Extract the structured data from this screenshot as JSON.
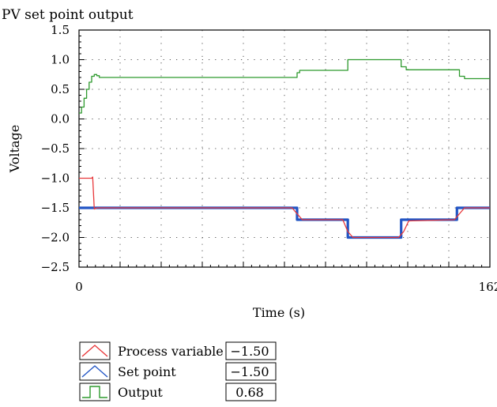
{
  "chart_data": {
    "type": "line",
    "title": "PV set point output",
    "xlabel": "Time (s)",
    "ylabel": "Voltage",
    "xlim": [
      0,
      162
    ],
    "ylim": [
      -2.5,
      1.5
    ],
    "x_ticks": [
      "0",
      "162"
    ],
    "y_ticks": [
      "1.5",
      "1.0",
      "0.5",
      "0.0",
      "−0.5",
      "−1.0",
      "−1.5",
      "−2.0",
      "−2.5"
    ],
    "grid": "dotted",
    "legend_position": "bottom-left",
    "series": [
      {
        "name": "Process variable",
        "color": "#e8373a",
        "icon": "process-variable-icon",
        "readout": "−1.50",
        "points": [
          [
            0,
            -1.0
          ],
          [
            5,
            -1.0
          ],
          [
            5.4,
            -0.98
          ],
          [
            6,
            -1.52
          ],
          [
            7,
            -1.5
          ],
          [
            84,
            -1.5
          ],
          [
            86,
            -1.6
          ],
          [
            88,
            -1.7
          ],
          [
            104,
            -1.7
          ],
          [
            106,
            -1.9
          ],
          [
            108,
            -2.0
          ],
          [
            126,
            -2.0
          ],
          [
            128,
            -1.9
          ],
          [
            130,
            -1.72
          ],
          [
            148,
            -1.7
          ],
          [
            150,
            -1.6
          ],
          [
            152,
            -1.5
          ],
          [
            162,
            -1.5
          ]
        ]
      },
      {
        "name": "Set point",
        "color": "#2255c4",
        "icon": "set-point-icon",
        "readout": "−1.50",
        "points": [
          [
            0,
            -1.5
          ],
          [
            86,
            -1.5
          ],
          [
            86,
            -1.7
          ],
          [
            106,
            -1.7
          ],
          [
            106,
            -2.0
          ],
          [
            127,
            -2.0
          ],
          [
            127,
            -1.7
          ],
          [
            149,
            -1.7
          ],
          [
            149,
            -1.5
          ],
          [
            162,
            -1.5
          ]
        ]
      },
      {
        "name": "Output",
        "color": "#2e9a2e",
        "icon": "output-icon",
        "readout": "0.68",
        "points": [
          [
            0,
            0.1
          ],
          [
            1,
            0.1
          ],
          [
            1,
            0.2
          ],
          [
            2,
            0.2
          ],
          [
            2,
            0.35
          ],
          [
            3,
            0.35
          ],
          [
            3,
            0.5
          ],
          [
            4,
            0.5
          ],
          [
            4,
            0.62
          ],
          [
            5,
            0.62
          ],
          [
            5,
            0.72
          ],
          [
            6,
            0.72
          ],
          [
            6,
            0.75
          ],
          [
            7,
            0.75
          ],
          [
            7,
            0.73
          ],
          [
            8,
            0.73
          ],
          [
            8,
            0.7
          ],
          [
            86,
            0.7
          ],
          [
            86,
            0.78
          ],
          [
            87,
            0.78
          ],
          [
            87,
            0.82
          ],
          [
            106,
            0.82
          ],
          [
            106,
            1.0
          ],
          [
            127,
            1.0
          ],
          [
            127,
            0.88
          ],
          [
            129,
            0.88
          ],
          [
            129,
            0.83
          ],
          [
            150,
            0.83
          ],
          [
            150,
            0.72
          ],
          [
            152,
            0.72
          ],
          [
            152,
            0.68
          ],
          [
            162,
            0.68
          ]
        ]
      }
    ]
  }
}
